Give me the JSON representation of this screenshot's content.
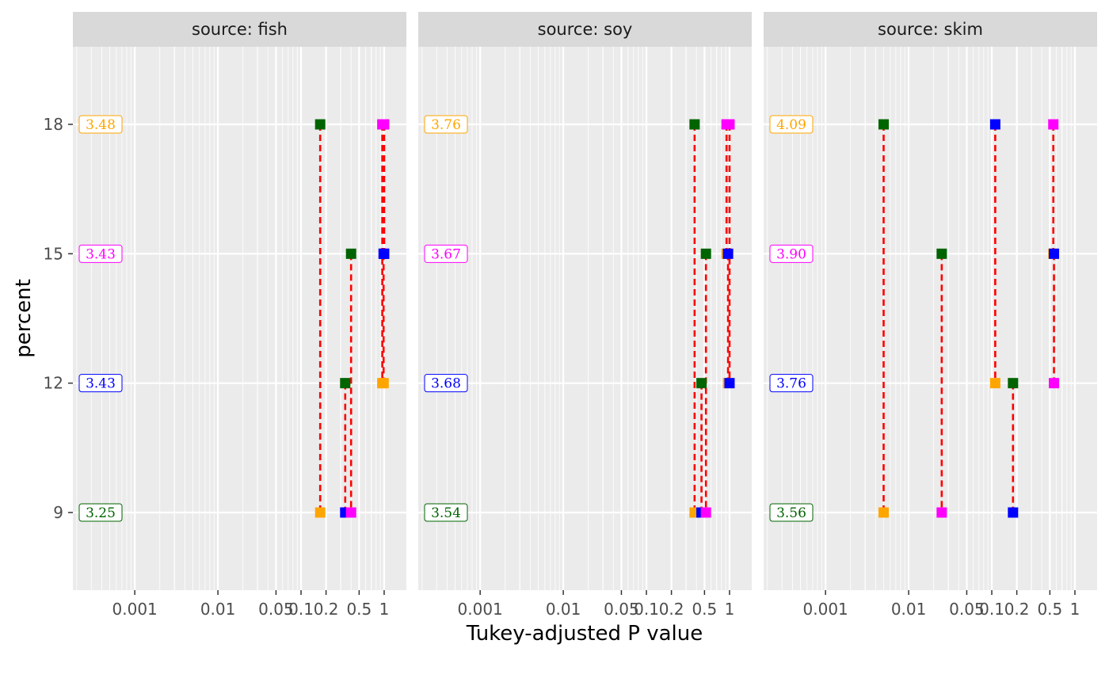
{
  "chart_data": {
    "type": "scatter",
    "xlabel": "Tukey-adjusted P value",
    "ylabel": "percent",
    "x_scale": "log",
    "xlim": [
      0.00018,
      1.85
    ],
    "ylim": [
      7.2,
      19.8
    ],
    "x_ticks": [
      {
        "value": 0.001,
        "label": "0.001"
      },
      {
        "value": 0.01,
        "label": "0.01"
      },
      {
        "value": 0.05,
        "label": "0.05"
      },
      {
        "value": 0.1,
        "label": "0.1"
      },
      {
        "value": 0.2,
        "label": "0.2"
      },
      {
        "value": 0.5,
        "label": "0.5"
      },
      {
        "value": 1,
        "label": "1"
      }
    ],
    "x_minor_gridlines": [
      0.003,
      0.03,
      0.3,
      0.7
    ],
    "y_ticks": [
      9,
      12,
      15,
      18
    ],
    "grid": true,
    "colors": {
      "9": "#008000",
      "12": "#0000FF",
      "15": "#FF00FF",
      "18": "#FFA500"
    },
    "comparison_line_color": "#FF0000",
    "panels": [
      {
        "strip": "source: fish",
        "estimates": [
          {
            "y": 18,
            "label": "3.48",
            "color": "#FFA500"
          },
          {
            "y": 15,
            "label": "3.43",
            "color": "#FF00FF"
          },
          {
            "y": 12,
            "label": "3.43",
            "color": "#0000FF"
          },
          {
            "y": 9,
            "label": "3.25",
            "color": "#006400"
          }
        ],
        "comparisons": [
          {
            "p": 0.17,
            "from": 18,
            "to": 9,
            "from_color": "#006400",
            "to_color": "#FFA500"
          },
          {
            "p": 0.34,
            "from": 12,
            "to": 9,
            "from_color": "#006400",
            "to_color": "#0000FF"
          },
          {
            "p": 0.4,
            "from": 15,
            "to": 9,
            "from_color": "#006400",
            "to_color": "#FF00FF"
          },
          {
            "p": 0.95,
            "from": 18,
            "to": 12,
            "from_color": "#FF00FF",
            "to_color": "#FFA500"
          },
          {
            "p": 0.985,
            "from": 15,
            "to": 12,
            "from_color": "#0000FF",
            "to_color": "#FFA500"
          },
          {
            "p": 1.0,
            "from": 18,
            "to": 15,
            "from_color": "#FF00FF",
            "to_color": "#0000FF"
          }
        ]
      },
      {
        "strip": "source: soy",
        "estimates": [
          {
            "y": 18,
            "label": "3.76",
            "color": "#FFA500"
          },
          {
            "y": 15,
            "label": "3.67",
            "color": "#FF00FF"
          },
          {
            "y": 12,
            "label": "3.68",
            "color": "#0000FF"
          },
          {
            "y": 9,
            "label": "3.54",
            "color": "#006400"
          }
        ],
        "comparisons": [
          {
            "p": 0.38,
            "from": 18,
            "to": 9,
            "from_color": "#006400",
            "to_color": "#FFA500"
          },
          {
            "p": 0.46,
            "from": 12,
            "to": 9,
            "from_color": "#006400",
            "to_color": "#0000FF"
          },
          {
            "p": 0.52,
            "from": 15,
            "to": 9,
            "from_color": "#006400",
            "to_color": "#FF00FF"
          },
          {
            "p": 0.92,
            "from": 18,
            "to": 15,
            "from_color": "#FF00FF",
            "to_color": "#FFA500"
          },
          {
            "p": 0.96,
            "from": 15,
            "to": 12,
            "from_color": "#0000FF",
            "to_color": "#FFA500"
          },
          {
            "p": 1.0,
            "from": 18,
            "to": 12,
            "from_color": "#FF00FF",
            "to_color": "#0000FF"
          }
        ]
      },
      {
        "strip": "source: skim",
        "estimates": [
          {
            "y": 18,
            "label": "4.09",
            "color": "#FFA500"
          },
          {
            "y": 15,
            "label": "3.90",
            "color": "#FF00FF"
          },
          {
            "y": 12,
            "label": "3.76",
            "color": "#0000FF"
          },
          {
            "y": 9,
            "label": "3.56",
            "color": "#006400"
          }
        ],
        "comparisons": [
          {
            "p": 0.005,
            "from": 18,
            "to": 9,
            "from_color": "#006400",
            "to_color": "#FFA500"
          },
          {
            "p": 0.025,
            "from": 15,
            "to": 9,
            "from_color": "#006400",
            "to_color": "#FF00FF"
          },
          {
            "p": 0.11,
            "from": 18,
            "to": 12,
            "from_color": "#0000FF",
            "to_color": "#FFA500"
          },
          {
            "p": 0.18,
            "from": 12,
            "to": 9,
            "from_color": "#006400",
            "to_color": "#0000FF"
          },
          {
            "p": 0.55,
            "from": 18,
            "to": 15,
            "from_color": "#FF00FF",
            "to_color": "#FFA500"
          },
          {
            "p": 0.56,
            "from": 15,
            "to": 12,
            "from_color": "#0000FF",
            "to_color": "#FF00FF"
          }
        ]
      }
    ]
  }
}
